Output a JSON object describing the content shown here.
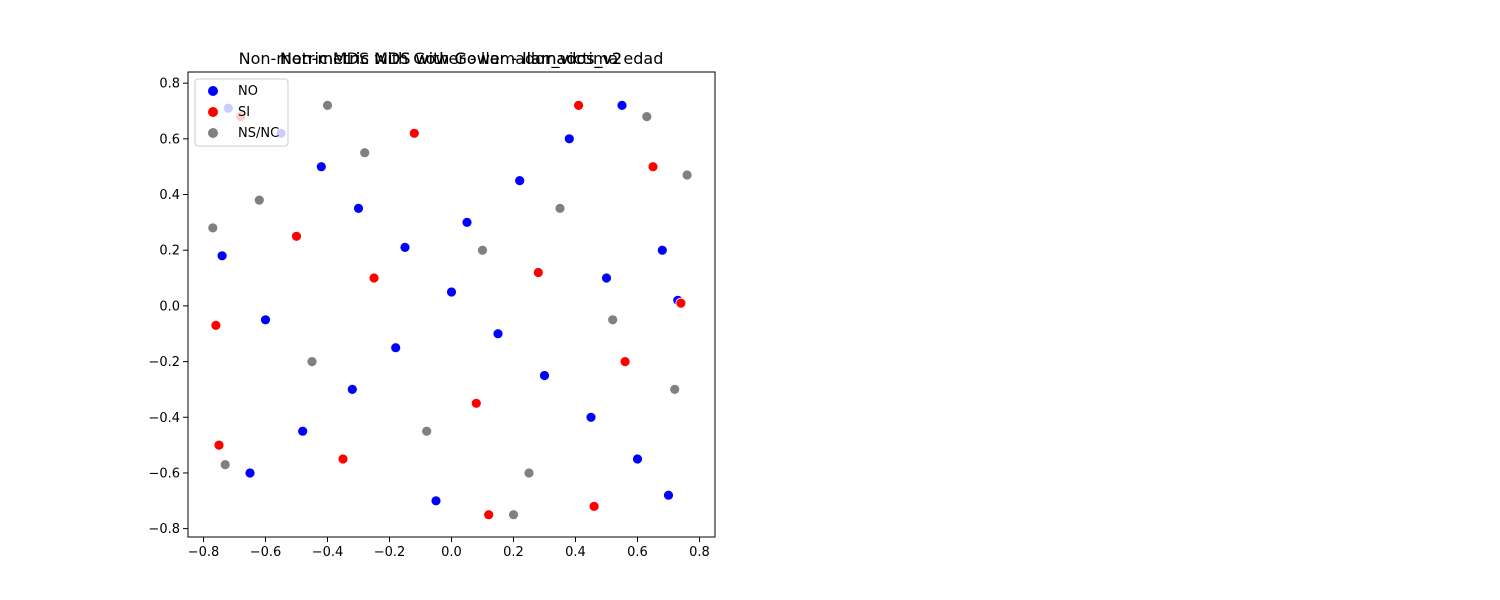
{
  "chart_data": {
    "type": "scatter",
    "titles": [
      "Non-metric MDS with Gower - llamador_victima edad",
      "Non-metric MDS with Gower - llamados_v2",
      "Non-metric MDS with Gower - llamados_v2"
    ],
    "xlim": [
      -0.85,
      0.85
    ],
    "ylim": [
      -0.83,
      0.84
    ],
    "xticks": [
      {
        "value": -0.8,
        "label": "−0.8"
      },
      {
        "value": -0.6,
        "label": "−0.6"
      },
      {
        "value": -0.4,
        "label": "−0.4"
      },
      {
        "value": -0.2,
        "label": "−0.2"
      },
      {
        "value": 0.0,
        "label": "0.0"
      },
      {
        "value": 0.2,
        "label": "0.2"
      },
      {
        "value": 0.4,
        "label": "0.4"
      },
      {
        "value": 0.6,
        "label": "0.6"
      },
      {
        "value": 0.8,
        "label": "0.8"
      }
    ],
    "yticks": [
      {
        "value": -0.8,
        "label": "−0.8"
      },
      {
        "value": -0.6,
        "label": "−0.6"
      },
      {
        "value": -0.4,
        "label": "−0.4"
      },
      {
        "value": -0.2,
        "label": "−0.2"
      },
      {
        "value": 0.0,
        "label": "0.0"
      },
      {
        "value": 0.2,
        "label": "0.2"
      },
      {
        "value": 0.4,
        "label": "0.4"
      },
      {
        "value": 0.6,
        "label": "0.6"
      },
      {
        "value": 0.8,
        "label": "0.8"
      }
    ],
    "grid": false,
    "legend_position": "top-left",
    "series": [
      {
        "name": "NO",
        "color": "#0000ff",
        "points": [
          [
            -0.72,
            0.71
          ],
          [
            -0.55,
            0.62
          ],
          [
            -0.42,
            0.5
          ],
          [
            -0.3,
            0.35
          ],
          [
            -0.15,
            0.21
          ],
          [
            0.0,
            0.05
          ],
          [
            0.15,
            -0.1
          ],
          [
            0.3,
            -0.25
          ],
          [
            0.45,
            -0.4
          ],
          [
            0.6,
            -0.55
          ],
          [
            0.7,
            -0.68
          ],
          [
            -0.65,
            -0.6
          ],
          [
            -0.48,
            -0.45
          ],
          [
            -0.32,
            -0.3
          ],
          [
            -0.18,
            -0.15
          ],
          [
            0.05,
            0.3
          ],
          [
            0.22,
            0.45
          ],
          [
            0.38,
            0.6
          ],
          [
            0.55,
            0.72
          ],
          [
            0.68,
            0.2
          ],
          [
            0.73,
            0.02
          ],
          [
            -0.74,
            0.18
          ],
          [
            -0.6,
            -0.05
          ],
          [
            0.5,
            0.1
          ],
          [
            -0.05,
            -0.7
          ]
        ]
      },
      {
        "name": "SI",
        "color": "#ff0000",
        "points": [
          [
            -0.76,
            -0.07
          ],
          [
            -0.75,
            -0.5
          ],
          [
            -0.68,
            0.68
          ],
          [
            -0.5,
            0.25
          ],
          [
            -0.35,
            -0.55
          ],
          [
            -0.12,
            0.62
          ],
          [
            0.08,
            -0.35
          ],
          [
            0.28,
            0.12
          ],
          [
            0.41,
            0.72
          ],
          [
            0.56,
            -0.2
          ],
          [
            0.65,
            0.5
          ],
          [
            0.74,
            0.01
          ],
          [
            0.12,
            -0.75
          ],
          [
            0.46,
            -0.72
          ],
          [
            -0.25,
            0.1
          ]
        ]
      },
      {
        "name": "NS/NC",
        "color": "#808080",
        "points": [
          [
            -0.77,
            0.28
          ],
          [
            -0.73,
            -0.57
          ],
          [
            -0.62,
            0.38
          ],
          [
            -0.45,
            -0.2
          ],
          [
            -0.28,
            0.55
          ],
          [
            -0.08,
            -0.45
          ],
          [
            0.1,
            0.2
          ],
          [
            0.25,
            -0.6
          ],
          [
            0.35,
            0.35
          ],
          [
            0.52,
            -0.05
          ],
          [
            0.63,
            0.68
          ],
          [
            0.72,
            -0.3
          ],
          [
            0.76,
            0.47
          ],
          [
            0.2,
            -0.75
          ],
          [
            -0.4,
            0.72
          ]
        ]
      }
    ]
  }
}
